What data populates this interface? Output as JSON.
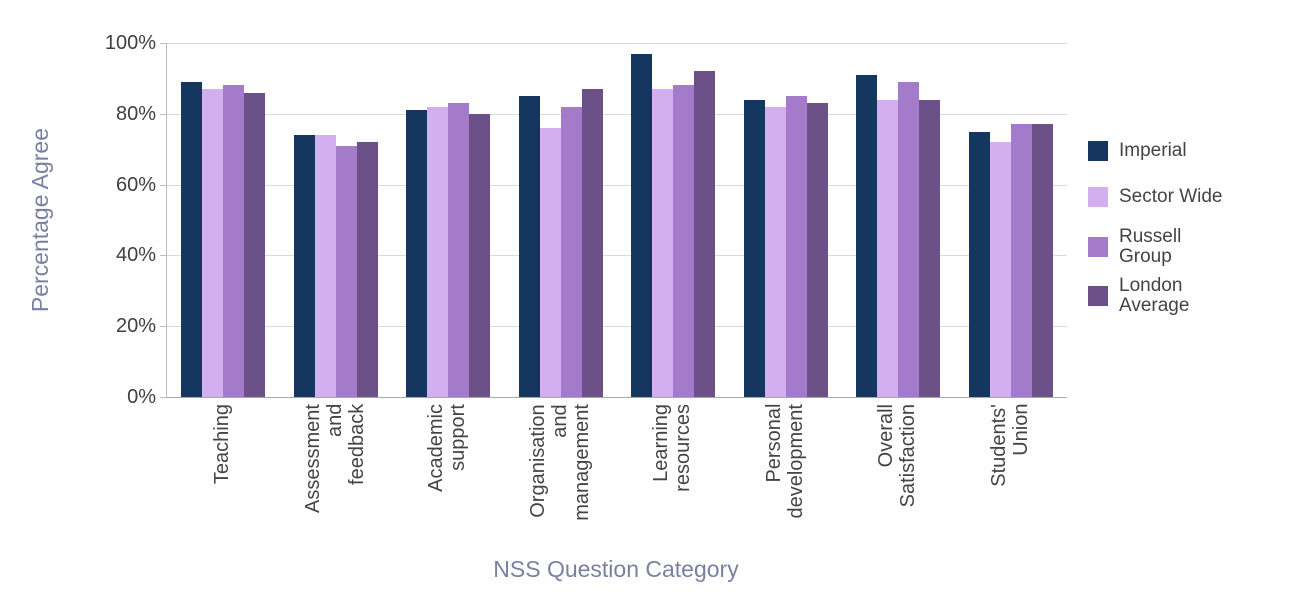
{
  "chart_data": {
    "type": "bar",
    "title": "",
    "xlabel": "NSS Question Category",
    "ylabel": "Percentage Agree",
    "categories": [
      "Teaching",
      "Assessment and feedback",
      "Academic support",
      "Organisation and management",
      "Learning resources",
      "Personal development",
      "Overall Satisfaction",
      "Students' Union"
    ],
    "series": [
      {
        "name": "Imperial",
        "color": "#14365F",
        "values": [
          89,
          74,
          81,
          85,
          97,
          84,
          91,
          75
        ]
      },
      {
        "name": "Sector Wide",
        "color": "#D4AFEF",
        "values": [
          87,
          74,
          82,
          76,
          87,
          82,
          84,
          72
        ]
      },
      {
        "name": "Russell Group",
        "color": "#A47BCB",
        "values": [
          88,
          71,
          83,
          82,
          88,
          85,
          89,
          77
        ]
      },
      {
        "name": "London Average",
        "color": "#6C5189",
        "values": [
          86,
          72,
          80,
          87,
          92,
          83,
          84,
          77
        ]
      }
    ],
    "ylim": [
      0,
      100
    ],
    "yticks": [
      0,
      20,
      40,
      60,
      80,
      100
    ],
    "ytick_format": "percent",
    "grid": true,
    "legend_position": "right"
  },
  "style_colors": {
    "background": "#FFFFFF",
    "gridline": "#DADADA",
    "axis_line": "#ABABAB",
    "tick_text": "#404040",
    "label_text": "#444444",
    "axis_title_text": "#7A81A0"
  }
}
